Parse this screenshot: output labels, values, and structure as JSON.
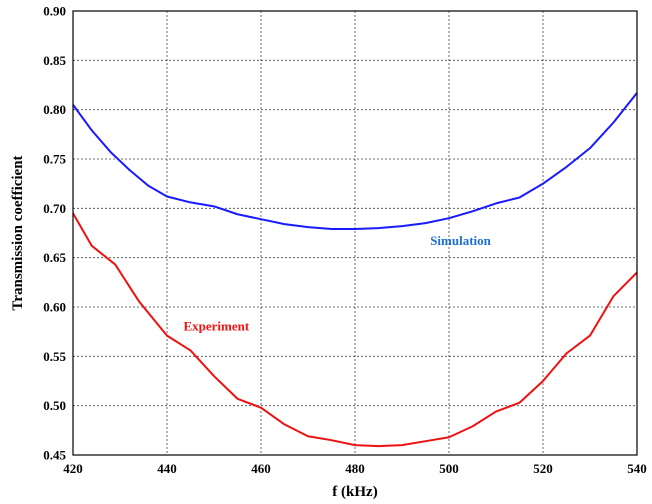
{
  "chart_data": {
    "type": "line",
    "xlabel": "f (kHz)",
    "ylabel": "Transmission  coefficient",
    "xlim": [
      420,
      540
    ],
    "ylim": [
      0.45,
      0.9
    ],
    "xticks": [
      420,
      440,
      460,
      480,
      500,
      520,
      540
    ],
    "yticks": [
      0.45,
      0.5,
      0.55,
      0.6,
      0.65,
      0.7,
      0.75,
      0.8,
      0.85,
      0.9
    ],
    "xtick_labels": [
      "420",
      "440",
      "460",
      "480",
      "500",
      "520",
      "540"
    ],
    "ytick_labels": [
      "0.45",
      "0.50",
      "0.55",
      "0.60",
      "0.65",
      "0.70",
      "0.75",
      "0.80",
      "0.85",
      "0.90"
    ],
    "grid": true,
    "series": [
      {
        "name": "Simulation",
        "color": "#1a1aff",
        "label_color": "#1f6fd0",
        "x": [
          420,
          424,
          428,
          432,
          436,
          440,
          445,
          450,
          455,
          460,
          465,
          470,
          475,
          480,
          485,
          490,
          495,
          500,
          505,
          510,
          515,
          520,
          525,
          530,
          535,
          540
        ],
        "y": [
          0.805,
          0.779,
          0.757,
          0.739,
          0.723,
          0.712,
          0.706,
          0.702,
          0.694,
          0.689,
          0.684,
          0.681,
          0.679,
          0.679,
          0.68,
          0.682,
          0.685,
          0.69,
          0.697,
          0.705,
          0.711,
          0.725,
          0.742,
          0.761,
          0.787,
          0.817
        ]
      },
      {
        "name": "Experiment",
        "color": "#ee1111",
        "label_color": "#ee1111",
        "x": [
          420,
          424,
          429,
          434,
          440,
          445,
          450,
          455,
          460,
          465,
          470,
          475,
          480,
          485,
          490,
          495,
          500,
          505,
          510,
          515,
          520,
          525,
          530,
          535,
          540
        ],
        "y": [
          0.695,
          0.662,
          0.643,
          0.606,
          0.571,
          0.556,
          0.53,
          0.507,
          0.498,
          0.481,
          0.469,
          0.465,
          0.46,
          0.459,
          0.46,
          0.464,
          0.468,
          0.479,
          0.494,
          0.503,
          0.525,
          0.553,
          0.571,
          0.611,
          0.635
        ]
      }
    ]
  }
}
